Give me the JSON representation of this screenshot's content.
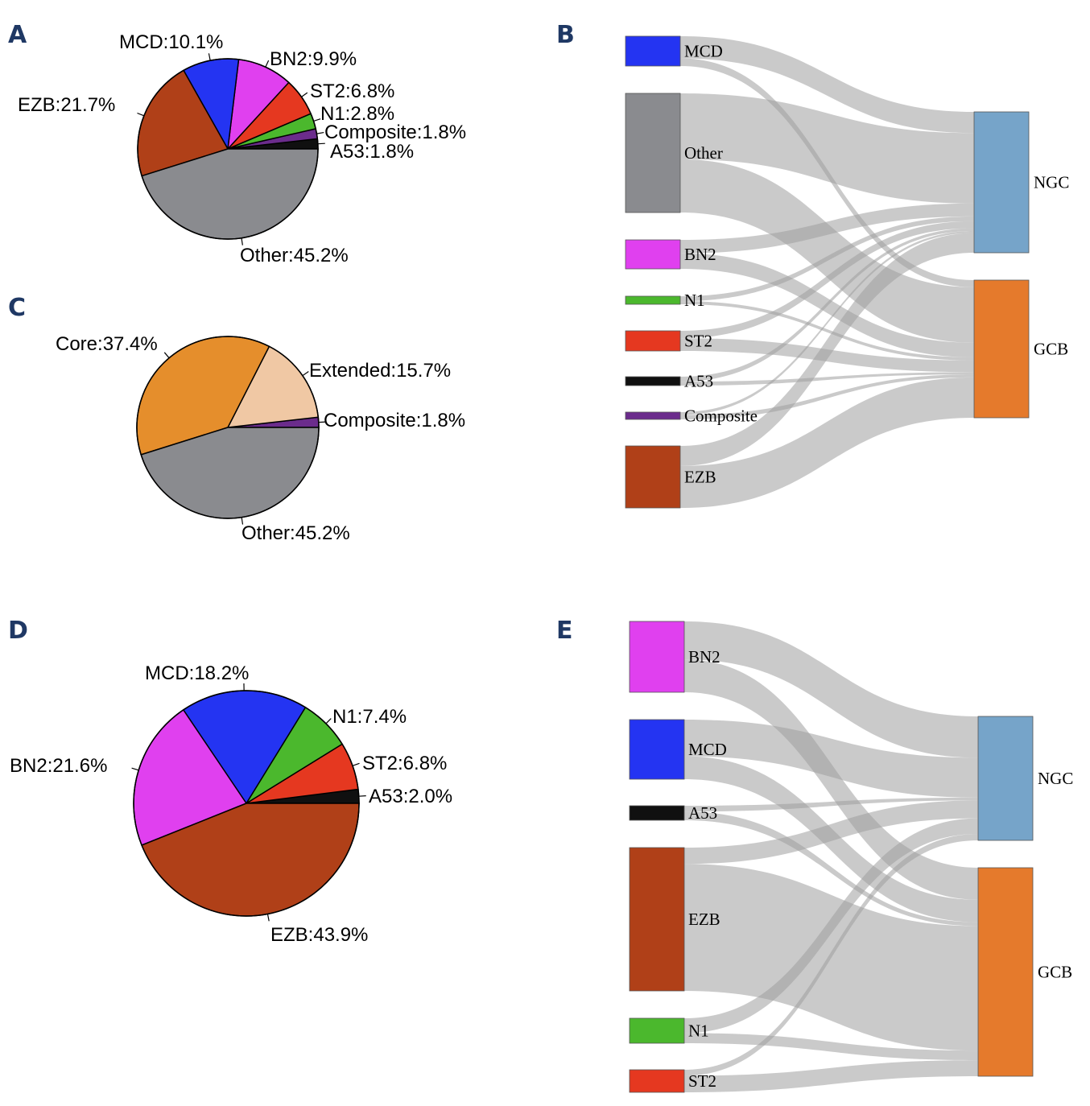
{
  "panel_letters": {
    "A": "A",
    "B": "B",
    "C": "C",
    "D": "D",
    "E": "E"
  },
  "colors": {
    "MCD": "#2434f2",
    "BN2": "#e040ef",
    "ST2": "#e53820",
    "N1": "#4bb82d",
    "Composite": "#6b2c8c",
    "A53": "#101010",
    "EZB": "#b04018",
    "Other": "#8a8b8f",
    "Core": "#e58e2c",
    "Extended": "#f0c8a4",
    "NGC": "#76a4c9",
    "GCB": "#e57a2c",
    "flow": "#9e9e9e"
  },
  "chart_data": [
    {
      "panel": "A",
      "type": "pie",
      "slices": [
        {
          "key": "A53",
          "label": "A53:1.8%",
          "value": 1.8
        },
        {
          "key": "Composite",
          "label": "Composite:1.8%",
          "value": 1.8
        },
        {
          "key": "N1",
          "label": "N1:2.8%",
          "value": 2.8
        },
        {
          "key": "ST2",
          "label": "ST2:6.8%",
          "value": 6.8
        },
        {
          "key": "BN2",
          "label": "BN2:9.9%",
          "value": 9.9
        },
        {
          "key": "MCD",
          "label": "MCD:10.1%",
          "value": 10.1
        },
        {
          "key": "EZB",
          "label": "EZB:21.7%",
          "value": 21.7
        },
        {
          "key": "Other",
          "label": "Other:45.2%",
          "value": 45.2
        }
      ]
    },
    {
      "panel": "B",
      "type": "sankey",
      "sources": [
        {
          "key": "MCD",
          "label": "MCD"
        },
        {
          "key": "Other",
          "label": "Other"
        },
        {
          "key": "BN2",
          "label": "BN2"
        },
        {
          "key": "N1",
          "label": "N1"
        },
        {
          "key": "ST2",
          "label": "ST2"
        },
        {
          "key": "A53",
          "label": "A53"
        },
        {
          "key": "Composite",
          "label": "Composite"
        },
        {
          "key": "EZB",
          "label": "EZB"
        }
      ],
      "targets": [
        {
          "key": "NGC",
          "label": "NGC"
        },
        {
          "key": "GCB",
          "label": "GCB"
        }
      ],
      "links": [
        {
          "source": "MCD",
          "target": "NGC",
          "value": 7.5
        },
        {
          "source": "MCD",
          "target": "GCB",
          "value": 2.6
        },
        {
          "source": "Other",
          "target": "NGC",
          "value": 25
        },
        {
          "source": "Other",
          "target": "GCB",
          "value": 20.2
        },
        {
          "source": "BN2",
          "target": "NGC",
          "value": 4.6
        },
        {
          "source": "BN2",
          "target": "GCB",
          "value": 5.3
        },
        {
          "source": "N1",
          "target": "NGC",
          "value": 1.7
        },
        {
          "source": "N1",
          "target": "GCB",
          "value": 1.1
        },
        {
          "source": "ST2",
          "target": "NGC",
          "value": 2.5
        },
        {
          "source": "ST2",
          "target": "GCB",
          "value": 4.3
        },
        {
          "source": "A53",
          "target": "NGC",
          "value": 1.0
        },
        {
          "source": "A53",
          "target": "GCB",
          "value": 0.8
        },
        {
          "source": "Composite",
          "target": "NGC",
          "value": 0.7
        },
        {
          "source": "Composite",
          "target": "GCB",
          "value": 1.1
        },
        {
          "source": "EZB",
          "target": "NGC",
          "value": 7.0
        },
        {
          "source": "EZB",
          "target": "GCB",
          "value": 14.7
        }
      ]
    },
    {
      "panel": "C",
      "type": "pie",
      "slices": [
        {
          "key": "Composite",
          "label": "Composite:1.8%",
          "value": 1.8
        },
        {
          "key": "Extended",
          "label": "Extended:15.7%",
          "value": 15.7
        },
        {
          "key": "Core",
          "label": "Core:37.4%",
          "value": 37.4
        },
        {
          "key": "Other",
          "label": "Other:45.2%",
          "value": 45.2
        }
      ]
    },
    {
      "panel": "D",
      "type": "pie",
      "slices": [
        {
          "key": "A53",
          "label": "A53:2.0%",
          "value": 2.0
        },
        {
          "key": "ST2",
          "label": "ST2:6.8%",
          "value": 6.8
        },
        {
          "key": "N1",
          "label": "N1:7.4%",
          "value": 7.4
        },
        {
          "key": "MCD",
          "label": "MCD:18.2%",
          "value": 18.2
        },
        {
          "key": "BN2",
          "label": "BN2:21.6%",
          "value": 21.6
        },
        {
          "key": "EZB",
          "label": "EZB:43.9%",
          "value": 43.9
        }
      ]
    },
    {
      "panel": "E",
      "type": "sankey",
      "sources": [
        {
          "key": "BN2",
          "label": "BN2"
        },
        {
          "key": "MCD",
          "label": "MCD"
        },
        {
          "key": "A53",
          "label": "A53"
        },
        {
          "key": "EZB",
          "label": "EZB"
        },
        {
          "key": "N1",
          "label": "N1"
        },
        {
          "key": "ST2",
          "label": "ST2"
        }
      ],
      "targets": [
        {
          "key": "NGC",
          "label": "NGC"
        },
        {
          "key": "GCB",
          "label": "GCB"
        }
      ],
      "links": [
        {
          "source": "BN2",
          "target": "NGC",
          "value": 11.6
        },
        {
          "source": "BN2",
          "target": "GCB",
          "value": 10.0
        },
        {
          "source": "MCD",
          "target": "NGC",
          "value": 11.2
        },
        {
          "source": "MCD",
          "target": "GCB",
          "value": 7.0
        },
        {
          "source": "A53",
          "target": "NGC",
          "value": 0.8
        },
        {
          "source": "A53",
          "target": "GCB",
          "value": 1.2
        },
        {
          "source": "EZB",
          "target": "NGC",
          "value": 5.0
        },
        {
          "source": "EZB",
          "target": "GCB",
          "value": 38.9
        },
        {
          "source": "N1",
          "target": "NGC",
          "value": 4.4
        },
        {
          "source": "N1",
          "target": "GCB",
          "value": 3.0
        },
        {
          "source": "ST2",
          "target": "NGC",
          "value": 1.8
        },
        {
          "source": "ST2",
          "target": "GCB",
          "value": 5.0
        }
      ]
    }
  ]
}
